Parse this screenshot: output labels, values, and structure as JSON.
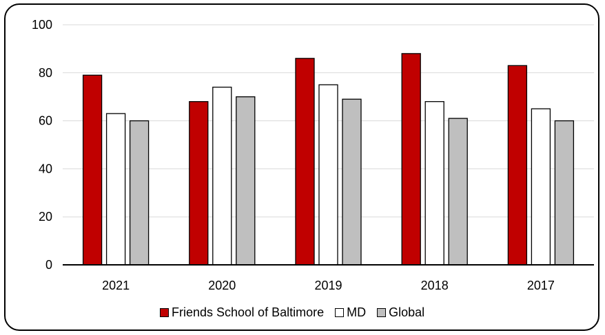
{
  "chart_data": {
    "type": "bar",
    "categories": [
      "2021",
      "2020",
      "2019",
      "2018",
      "2017"
    ],
    "series": [
      {
        "name": "Friends School of Baltimore",
        "values": [
          79,
          68,
          86,
          88,
          83
        ],
        "color": "#c00000"
      },
      {
        "name": "MD",
        "values": [
          63,
          74,
          75,
          68,
          65
        ],
        "color": "#ffffff"
      },
      {
        "name": "Global",
        "values": [
          60,
          70,
          69,
          61,
          60
        ],
        "color": "#bfbfbf"
      }
    ],
    "yticks": [
      "0",
      "20",
      "40",
      "60",
      "80",
      "100"
    ],
    "ylim": [
      0,
      100
    ],
    "grid": true,
    "legend_position": "bottom"
  }
}
